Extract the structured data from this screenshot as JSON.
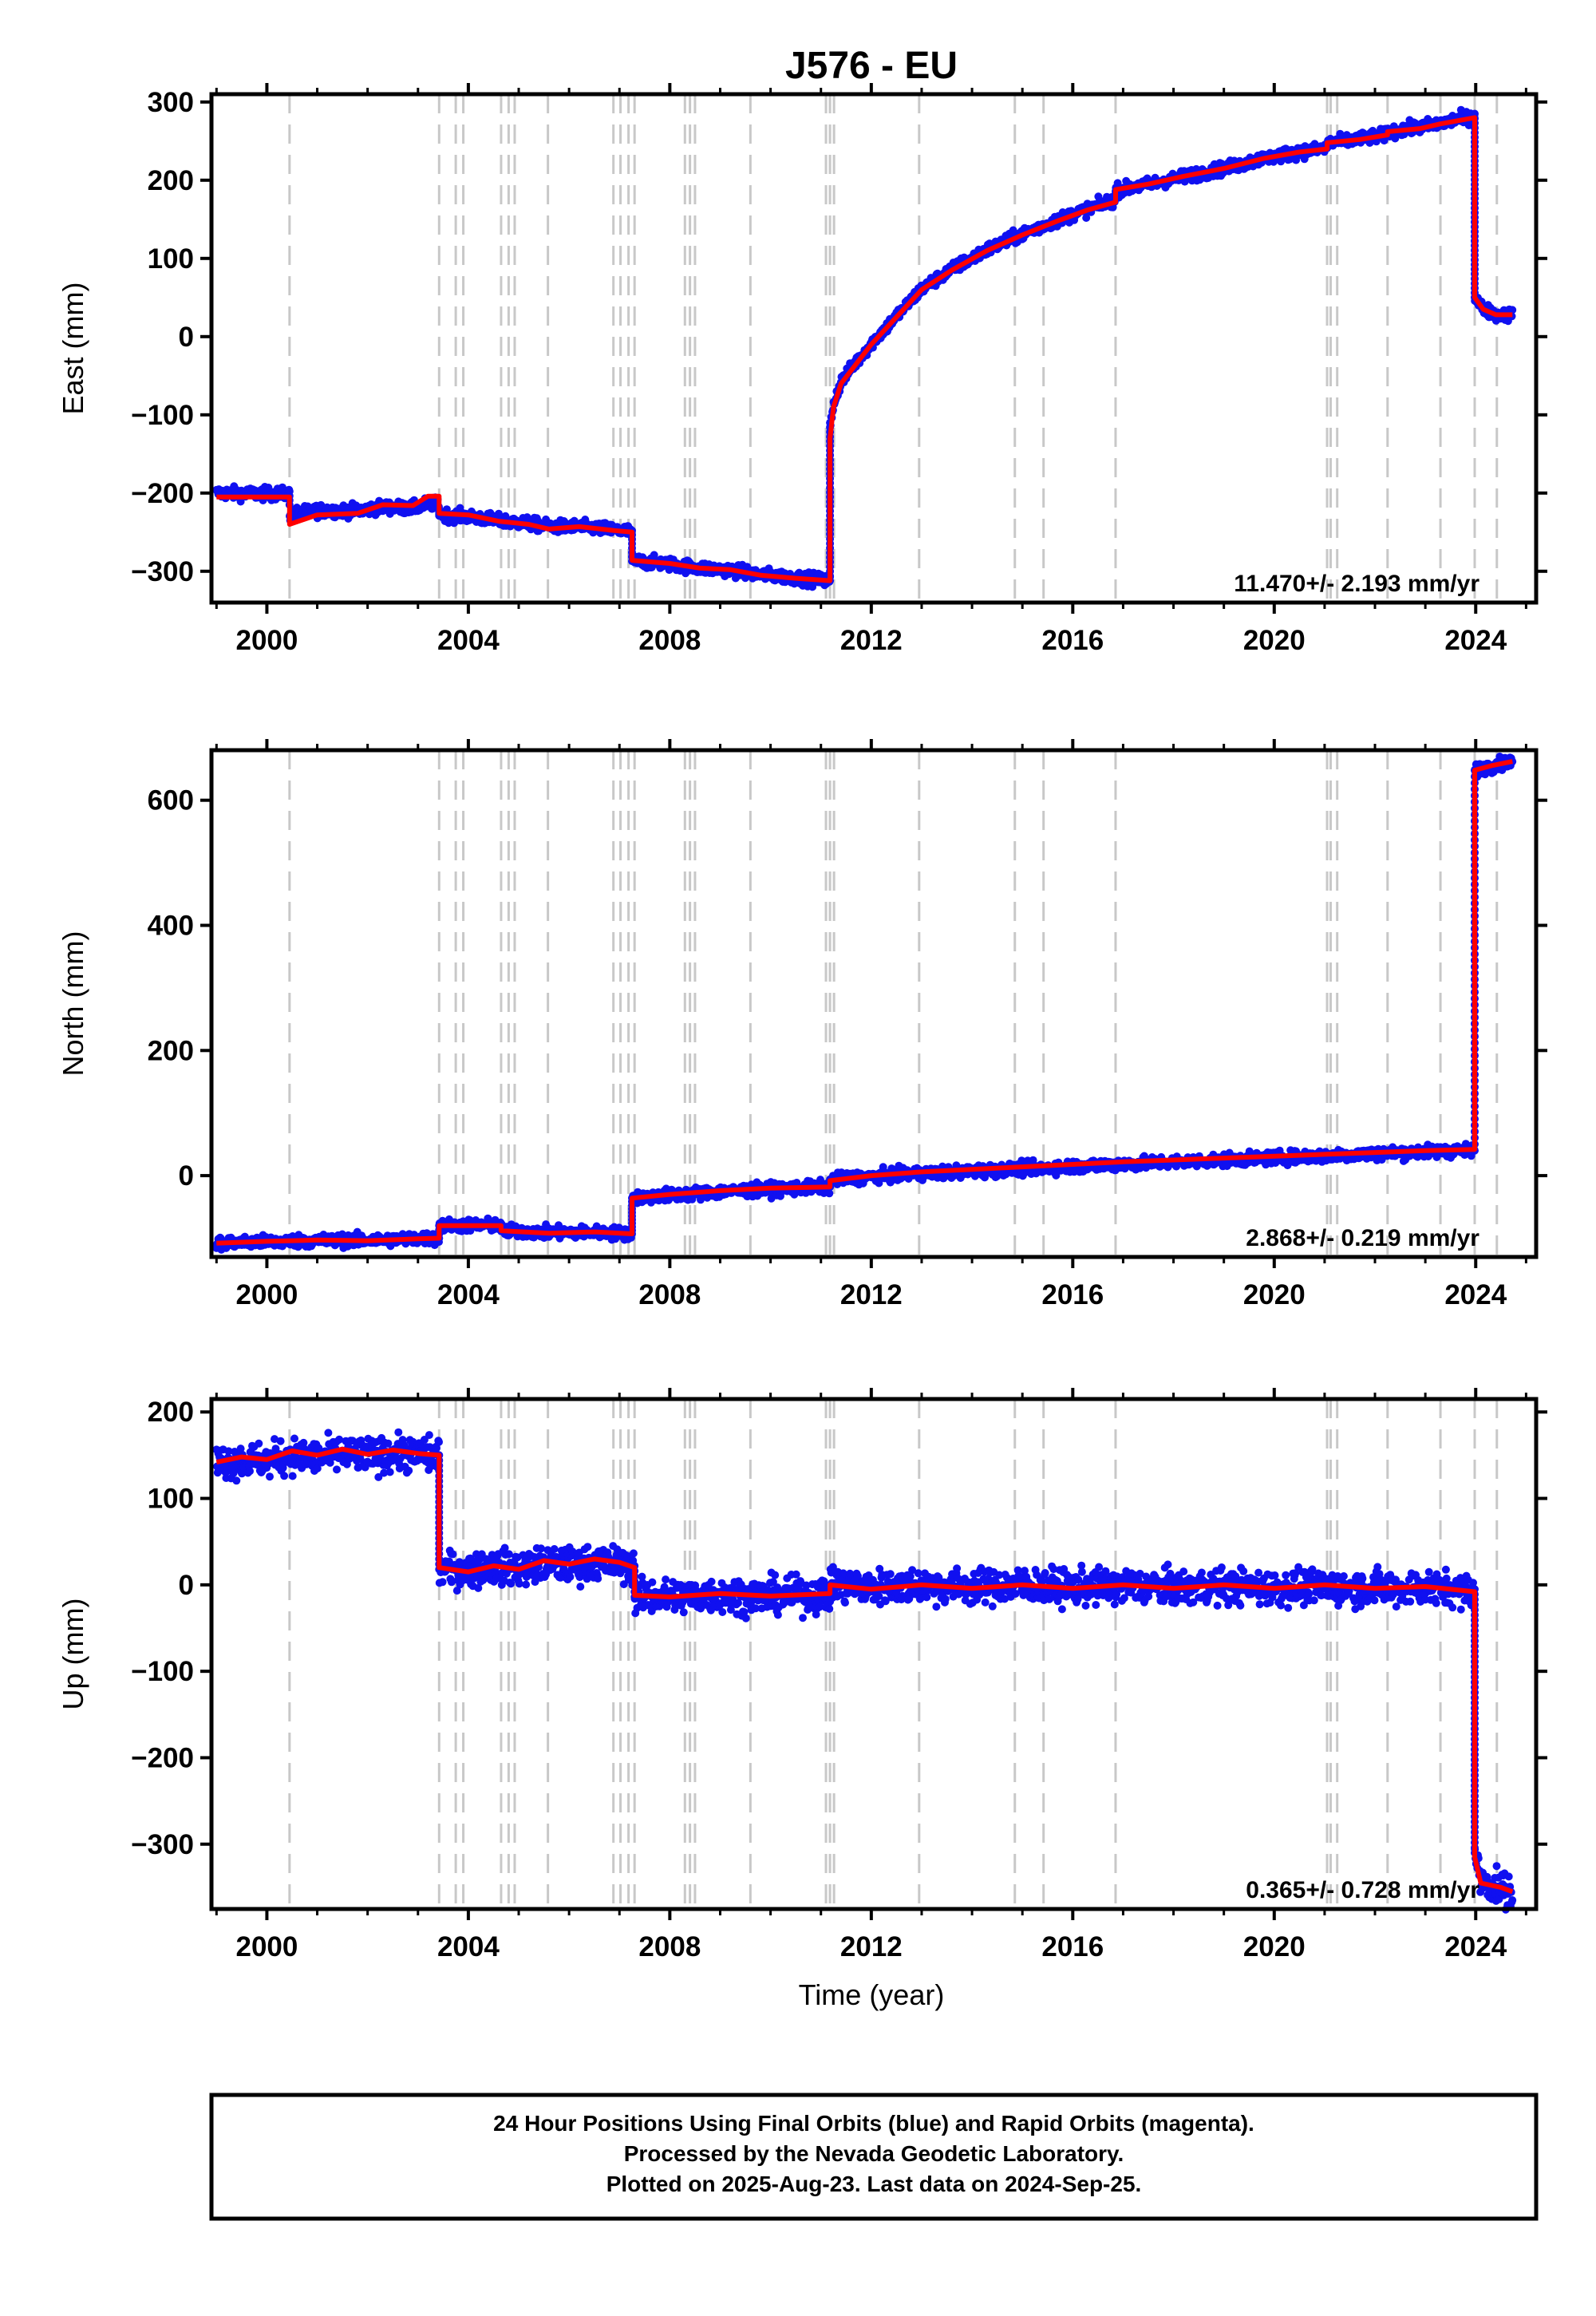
{
  "title": "J576 - EU",
  "colors": {
    "data": "#1010f0",
    "model": "#ff0000",
    "event": "#c8c8c8",
    "frame": "#000000"
  },
  "chart_data": {
    "type": "scatter",
    "x_label": "Time (year)",
    "x_range": [
      1998.9,
      2025.2
    ],
    "x_ticks": [
      2000,
      2004,
      2008,
      2012,
      2016,
      2020,
      2024
    ],
    "event_lines": [
      2000.45,
      2003.42,
      2003.75,
      2003.9,
      2004.65,
      2004.8,
      2004.92,
      2005.58,
      2006.88,
      2007.02,
      2007.18,
      2007.3,
      2008.3,
      2008.4,
      2008.5,
      2009.6,
      2011.1,
      2011.18,
      2011.26,
      2012.95,
      2014.85,
      2015.42,
      2016.85,
      2021.05,
      2021.12,
      2021.25,
      2022.25,
      2023.3,
      2023.98,
      2024.42
    ],
    "panels": [
      {
        "id": "east",
        "ylabel": "East (mm)",
        "y_range": [
          -340,
          310
        ],
        "y_ticks": [
          -300,
          -200,
          -100,
          0,
          100,
          200,
          300
        ],
        "y_tick_labels": [
          "−300",
          "−200",
          "−100",
          "0",
          "100",
          "200",
          "300"
        ],
        "rate": "11.470+/- 2.193 mm/yr",
        "scatter": 4,
        "model": [
          [
            1999.0,
            -205
          ],
          [
            2000.45,
            -205
          ],
          [
            2000.45,
            -240
          ],
          [
            2001.0,
            -228
          ],
          [
            2001.8,
            -226
          ],
          [
            2002.3,
            -215
          ],
          [
            2002.9,
            -216
          ],
          [
            2003.2,
            -204
          ],
          [
            2003.42,
            -204
          ],
          [
            2003.42,
            -226
          ],
          [
            2004.0,
            -228
          ],
          [
            2004.6,
            -236
          ],
          [
            2005.2,
            -240
          ],
          [
            2005.6,
            -246
          ],
          [
            2006.2,
            -243
          ],
          [
            2006.9,
            -248
          ],
          [
            2007.25,
            -250
          ],
          [
            2007.25,
            -286
          ],
          [
            2008.0,
            -290
          ],
          [
            2008.6,
            -296
          ],
          [
            2009.2,
            -298
          ],
          [
            2009.8,
            -305
          ],
          [
            2010.5,
            -309
          ],
          [
            2011.18,
            -312
          ],
          [
            2011.18,
            -130
          ],
          [
            2011.25,
            -90
          ],
          [
            2011.4,
            -60
          ],
          [
            2011.7,
            -35
          ],
          [
            2012.0,
            -10
          ],
          [
            2012.5,
            25
          ],
          [
            2013.0,
            60
          ],
          [
            2013.6,
            85
          ],
          [
            2014.3,
            110
          ],
          [
            2015.0,
            130
          ],
          [
            2015.7,
            148
          ],
          [
            2016.3,
            162
          ],
          [
            2016.85,
            172
          ],
          [
            2016.85,
            188
          ],
          [
            2017.5,
            195
          ],
          [
            2018.2,
            205
          ],
          [
            2019.0,
            215
          ],
          [
            2019.8,
            228
          ],
          [
            2020.5,
            236
          ],
          [
            2021.05,
            240
          ],
          [
            2021.05,
            248
          ],
          [
            2021.7,
            252
          ],
          [
            2022.25,
            258
          ],
          [
            2022.25,
            262
          ],
          [
            2022.9,
            266
          ],
          [
            2023.3,
            272
          ],
          [
            2023.98,
            280
          ],
          [
            2023.98,
            50
          ],
          [
            2024.15,
            35
          ],
          [
            2024.4,
            28
          ],
          [
            2024.73,
            28
          ]
        ],
        "data": [
          [
            1999.0,
            -195
          ],
          [
            2000.45,
            -198
          ],
          [
            2000.45,
            -215
          ],
          [
            2003.42,
            -224
          ],
          [
            2003.42,
            -229
          ],
          [
            2007.25,
            -248
          ],
          [
            2007.25,
            -287
          ],
          [
            2011.18,
            -312
          ],
          [
            2011.18,
            -110
          ],
          [
            2011.25,
            -80
          ],
          [
            2011.4,
            -55
          ],
          [
            2011.7,
            -30
          ],
          [
            2012.0,
            -8
          ],
          [
            2012.5,
            27
          ],
          [
            2013.0,
            62
          ],
          [
            2013.6,
            87
          ],
          [
            2014.3,
            112
          ],
          [
            2015.0,
            132
          ],
          [
            2015.7,
            150
          ],
          [
            2016.3,
            164
          ],
          [
            2016.85,
            178
          ],
          [
            2016.85,
            186
          ],
          [
            2017.5,
            194
          ],
          [
            2018.2,
            204
          ],
          [
            2019.0,
            215
          ],
          [
            2019.8,
            228
          ],
          [
            2020.5,
            236
          ],
          [
            2021.05,
            241
          ],
          [
            2021.05,
            247
          ],
          [
            2022.25,
            259
          ],
          [
            2022.25,
            262
          ],
          [
            2023.3,
            274
          ],
          [
            2023.98,
            285
          ],
          [
            2023.98,
            50
          ],
          [
            2024.15,
            36
          ],
          [
            2024.4,
            28
          ],
          [
            2024.73,
            28
          ]
        ]
      },
      {
        "id": "north",
        "ylabel": "North (mm)",
        "y_range": [
          -130,
          680
        ],
        "y_ticks": [
          0,
          200,
          400,
          600
        ],
        "y_tick_labels": [
          "0",
          "200",
          "400",
          "600"
        ],
        "rate": "2.868+/- 0.219 mm/yr",
        "scatter": 5,
        "model": [
          [
            1999.0,
            -108
          ],
          [
            2000.0,
            -105
          ],
          [
            2001.0,
            -103
          ],
          [
            2002.0,
            -104
          ],
          [
            2003.0,
            -101
          ],
          [
            2003.42,
            -100
          ],
          [
            2003.42,
            -80
          ],
          [
            2004.0,
            -80
          ],
          [
            2004.65,
            -80
          ],
          [
            2004.65,
            -88
          ],
          [
            2005.6,
            -92
          ],
          [
            2006.5,
            -90
          ],
          [
            2007.25,
            -93
          ],
          [
            2007.25,
            -36
          ],
          [
            2008.0,
            -30
          ],
          [
            2009.0,
            -24
          ],
          [
            2010.0,
            -20
          ],
          [
            2011.18,
            -18
          ],
          [
            2011.18,
            -8
          ],
          [
            2012.0,
            0
          ],
          [
            2013.0,
            6
          ],
          [
            2014.0,
            10
          ],
          [
            2015.0,
            14
          ],
          [
            2016.0,
            18
          ],
          [
            2017.0,
            22
          ],
          [
            2018.0,
            25
          ],
          [
            2019.0,
            28
          ],
          [
            2020.0,
            31
          ],
          [
            2021.0,
            34
          ],
          [
            2022.0,
            37
          ],
          [
            2023.0,
            40
          ],
          [
            2023.98,
            42
          ],
          [
            2023.98,
            648
          ],
          [
            2024.3,
            655
          ],
          [
            2024.73,
            662
          ]
        ],
        "data": [
          [
            1999.0,
            -108
          ],
          [
            2003.42,
            -100
          ],
          [
            2003.42,
            -80
          ],
          [
            2004.65,
            -78
          ],
          [
            2004.65,
            -88
          ],
          [
            2007.25,
            -93
          ],
          [
            2007.25,
            -36
          ],
          [
            2011.18,
            -18
          ],
          [
            2011.18,
            -6
          ],
          [
            2023.98,
            40
          ],
          [
            2023.98,
            648
          ],
          [
            2024.73,
            663
          ]
        ]
      },
      {
        "id": "up",
        "ylabel": "Up (mm)",
        "y_range": [
          -375,
          215
        ],
        "y_ticks": [
          -300,
          -200,
          -100,
          0,
          100,
          200
        ],
        "y_tick_labels": [
          "−300",
          "−200",
          "−100",
          "0",
          "100",
          "200"
        ],
        "rate": "0.365+/- 0.728 mm/yr",
        "scatter": 10,
        "model": [
          [
            1999.0,
            142
          ],
          [
            1999.5,
            148
          ],
          [
            2000.0,
            145
          ],
          [
            2000.5,
            155
          ],
          [
            2001.0,
            150
          ],
          [
            2001.5,
            157
          ],
          [
            2002.0,
            151
          ],
          [
            2002.5,
            156
          ],
          [
            2003.0,
            152
          ],
          [
            2003.42,
            150
          ],
          [
            2003.42,
            20
          ],
          [
            2004.0,
            15
          ],
          [
            2004.5,
            22
          ],
          [
            2005.0,
            18
          ],
          [
            2005.5,
            28
          ],
          [
            2006.0,
            24
          ],
          [
            2006.5,
            30
          ],
          [
            2007.0,
            26
          ],
          [
            2007.3,
            20
          ],
          [
            2007.3,
            -12
          ],
          [
            2008.0,
            -14
          ],
          [
            2009.0,
            -10
          ],
          [
            2010.0,
            -13
          ],
          [
            2011.18,
            -10
          ],
          [
            2011.18,
            0
          ],
          [
            2012.0,
            -5
          ],
          [
            2013.0,
            0
          ],
          [
            2014.0,
            -4
          ],
          [
            2015.0,
            0
          ],
          [
            2016.0,
            -4
          ],
          [
            2017.0,
            0
          ],
          [
            2018.0,
            -4
          ],
          [
            2019.0,
            0
          ],
          [
            2020.0,
            -4
          ],
          [
            2021.0,
            0
          ],
          [
            2022.0,
            -4
          ],
          [
            2023.0,
            -2
          ],
          [
            2023.98,
            -8
          ],
          [
            2023.98,
            -315
          ],
          [
            2024.1,
            -345
          ],
          [
            2024.5,
            -350
          ],
          [
            2024.73,
            -355
          ]
        ],
        "data": [
          [
            1999.0,
            140
          ],
          [
            2003.42,
            150
          ],
          [
            2003.42,
            18
          ],
          [
            2007.3,
            22
          ],
          [
            2007.3,
            -14
          ],
          [
            2011.18,
            -12
          ],
          [
            2011.18,
            0
          ],
          [
            2023.98,
            -5
          ],
          [
            2023.98,
            -310
          ],
          [
            2024.1,
            -340
          ],
          [
            2024.73,
            -358
          ]
        ]
      }
    ]
  },
  "footer": {
    "line1": "24 Hour Positions Using Final Orbits (blue) and Rapid Orbits (magenta).",
    "line2": "Processed by the Nevada Geodetic Laboratory.",
    "line3": "Plotted on 2025-Aug-23. Last data on 2024-Sep-25."
  }
}
